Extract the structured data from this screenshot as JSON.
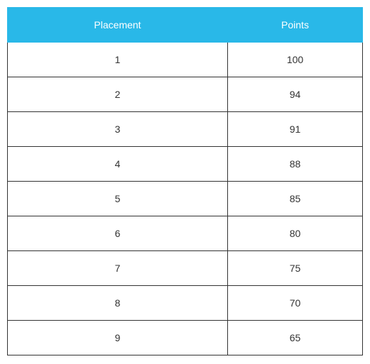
{
  "table": {
    "type": "table",
    "header_bg_color": "#29b8e8",
    "header_text_color": "#ffffff",
    "cell_border_color": "#333333",
    "cell_bg_color": "#ffffff",
    "cell_text_color": "#333333",
    "font_size": 14,
    "columns": [
      {
        "label": "Placement",
        "width_pct": 62
      },
      {
        "label": "Points",
        "width_pct": 38
      }
    ],
    "rows": [
      {
        "placement": "1",
        "points": "100"
      },
      {
        "placement": "2",
        "points": "94"
      },
      {
        "placement": "3",
        "points": "91"
      },
      {
        "placement": "4",
        "points": "88"
      },
      {
        "placement": "5",
        "points": "85"
      },
      {
        "placement": "6",
        "points": "80"
      },
      {
        "placement": "7",
        "points": "75"
      },
      {
        "placement": "8",
        "points": "70"
      },
      {
        "placement": "9",
        "points": "65"
      }
    ]
  }
}
